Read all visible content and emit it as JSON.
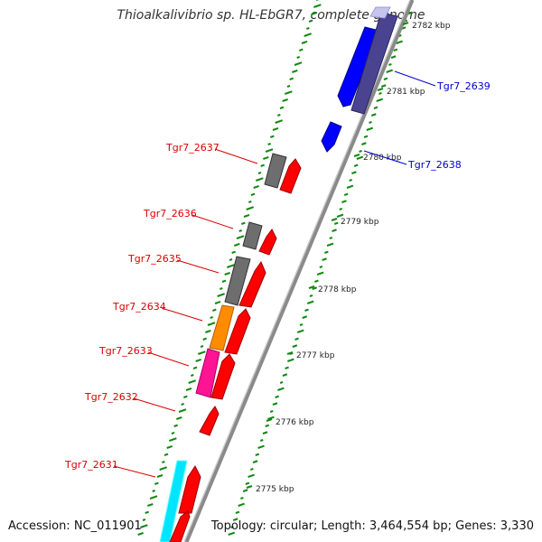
{
  "title": "Thioalkalivibrio sp. HL-EbGR7, complete genome",
  "footer": {
    "accession": "Accession: NC_011901",
    "topology": "Topology: circular; Length: 3,464,554 bp; Genes: 3,330"
  },
  "colors": {
    "backbone": "#8a8a8a",
    "gc_ticks": "#118811",
    "gene_red": "#ff0000",
    "gene_grey": "#6e6e6e",
    "gene_orange": "#ff8c00",
    "gene_magenta": "#ff1493",
    "gene_cyan": "#00e5ff",
    "gene_blue": "#0000ff",
    "gene_slate": "#4a4490",
    "label_red": "#dd0000",
    "label_blue": "#0000cc"
  },
  "ticks": [
    {
      "label": "2775 kbp"
    },
    {
      "label": "2776 kbp"
    },
    {
      "label": "2777 kbp"
    },
    {
      "label": "2778 kbp"
    },
    {
      "label": "2779 kbp"
    },
    {
      "label": "2780 kbp"
    },
    {
      "label": "2781 kbp"
    },
    {
      "label": "2782 kbp"
    }
  ],
  "gene_labels": [
    {
      "text": "Tgr7_2631",
      "strand": "left"
    },
    {
      "text": "Tgr7_2632",
      "strand": "left"
    },
    {
      "text": "Tgr7_2633",
      "strand": "left"
    },
    {
      "text": "Tgr7_2634",
      "strand": "left"
    },
    {
      "text": "Tgr7_2635",
      "strand": "left"
    },
    {
      "text": "Tgr7_2636",
      "strand": "left"
    },
    {
      "text": "Tgr7_2637",
      "strand": "left"
    },
    {
      "text": "Tgr7_2638",
      "strand": "right"
    },
    {
      "text": "Tgr7_2639",
      "strand": "right"
    }
  ]
}
